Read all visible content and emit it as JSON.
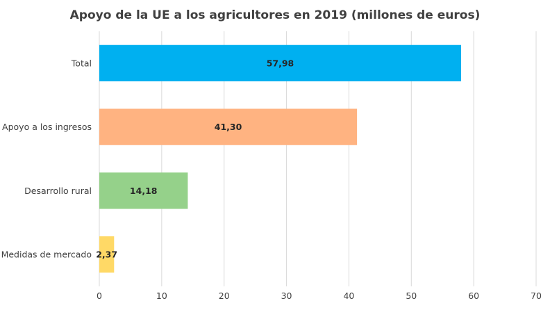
{
  "chart_data": {
    "type": "bar",
    "orientation": "horizontal",
    "title": "Apoyo de la UE a los agricultores en 2019 (millones de euros)",
    "xlabel": "",
    "ylabel": "",
    "categories": [
      "Total",
      "Apoyo a los ingresos",
      "Desarrollo rural",
      "Medidas de mercado"
    ],
    "values": [
      57.98,
      41.3,
      14.18,
      2.37
    ],
    "data_labels": [
      "57,98",
      "41,30",
      "14,18",
      "2,37"
    ],
    "bar_colors": [
      "#00b0f0",
      "#ffb381",
      "#95d18a",
      "#ffd966"
    ],
    "xlim": [
      0,
      70
    ],
    "ticks": [
      0,
      10,
      20,
      30,
      40,
      50,
      60,
      70
    ],
    "tick_labels": [
      "0",
      "10",
      "20",
      "30",
      "40",
      "50",
      "60",
      "70"
    ],
    "grid": true,
    "legend": "none"
  }
}
